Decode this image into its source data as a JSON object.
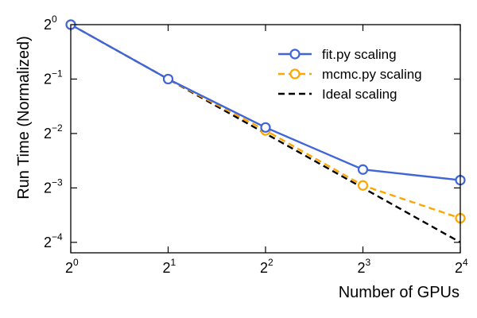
{
  "chart_data": {
    "type": "line",
    "xlabel": "Number of GPUs",
    "ylabel": "Run Time (Normalized)",
    "xscale": "log2",
    "yscale": "log2",
    "x_ticks": [
      {
        "base": "2",
        "exp": "0",
        "value": 1
      },
      {
        "base": "2",
        "exp": "1",
        "value": 2
      },
      {
        "base": "2",
        "exp": "2",
        "value": 4
      },
      {
        "base": "2",
        "exp": "3",
        "value": 8
      },
      {
        "base": "2",
        "exp": "4",
        "value": 16
      }
    ],
    "y_ticks": [
      {
        "base": "2",
        "exp": "0",
        "value": 1
      },
      {
        "base": "2",
        "exp": "−1",
        "value": 0.5
      },
      {
        "base": "2",
        "exp": "−2",
        "value": 0.25
      },
      {
        "base": "2",
        "exp": "−3",
        "value": 0.125
      },
      {
        "base": "2",
        "exp": "−4",
        "value": 0.0625
      }
    ],
    "xlim": [
      1,
      16
    ],
    "ylim": [
      0.0547,
      1
    ],
    "grid": false,
    "legend_position": "top-right",
    "series": [
      {
        "name": "fit.py scaling",
        "color": "#3f65d8",
        "dash": "solid",
        "marker": "circle",
        "x": [
          1,
          2,
          4,
          8,
          16
        ],
        "y": [
          1,
          0.5,
          0.27,
          0.158,
          0.138
        ]
      },
      {
        "name": "mcmc.py scaling",
        "color": "#ffa500",
        "dash": "dashed",
        "marker": "circle",
        "x": [
          1,
          2,
          4,
          8,
          16
        ],
        "y": [
          1,
          0.5,
          0.26,
          0.129,
          0.085
        ]
      },
      {
        "name": "Ideal scaling",
        "color": "#000000",
        "dash": "dashed",
        "marker": "none",
        "x": [
          1,
          2,
          4,
          8,
          16
        ],
        "y": [
          1,
          0.5,
          0.25,
          0.125,
          0.0625
        ]
      }
    ]
  }
}
